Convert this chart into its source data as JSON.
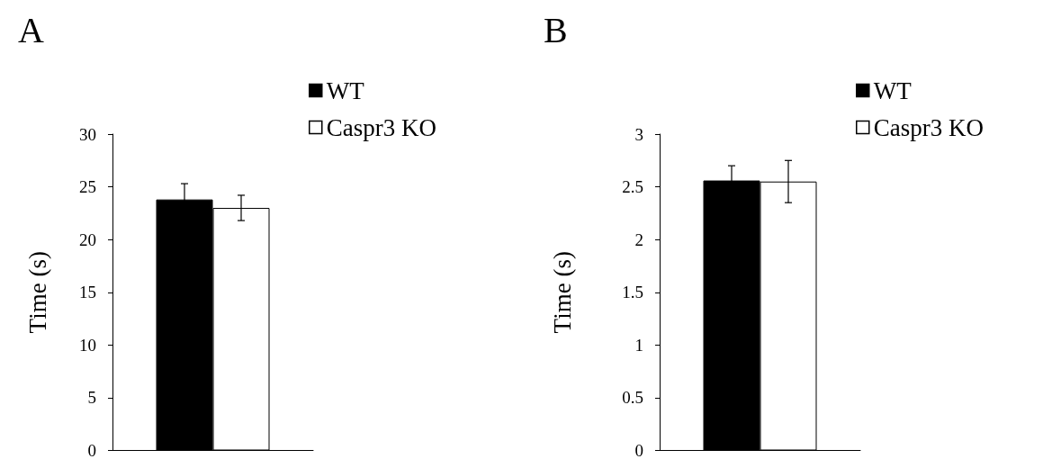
{
  "chart_data": [
    {
      "type": "bar",
      "title": "A",
      "ylabel": "Time (s)",
      "categories": [
        null
      ],
      "legend": "top right",
      "grid": false,
      "ylim": [
        0,
        30
      ],
      "yticks": [
        0,
        5,
        10,
        15,
        20,
        25,
        30
      ],
      "series": [
        {
          "name": "WT",
          "color": "#000000",
          "values": [
            23.8
          ],
          "errors": [
            1.5
          ]
        },
        {
          "name": "Caspr3 KO",
          "color": "#ffffff",
          "values": [
            23.0
          ],
          "errors": [
            1.2
          ]
        }
      ]
    },
    {
      "type": "bar",
      "title": "B",
      "ylabel": "Time (s)",
      "categories": [
        null
      ],
      "legend": "top right",
      "grid": false,
      "ylim": [
        0,
        3
      ],
      "yticks": [
        0,
        0.5,
        1,
        1.5,
        2,
        2.5,
        3
      ],
      "series": [
        {
          "name": "WT",
          "color": "#000000",
          "values": [
            2.56
          ],
          "errors": [
            0.14
          ]
        },
        {
          "name": "Caspr3 KO",
          "color": "#ffffff",
          "values": [
            2.55
          ],
          "errors": [
            0.2
          ]
        }
      ]
    }
  ]
}
